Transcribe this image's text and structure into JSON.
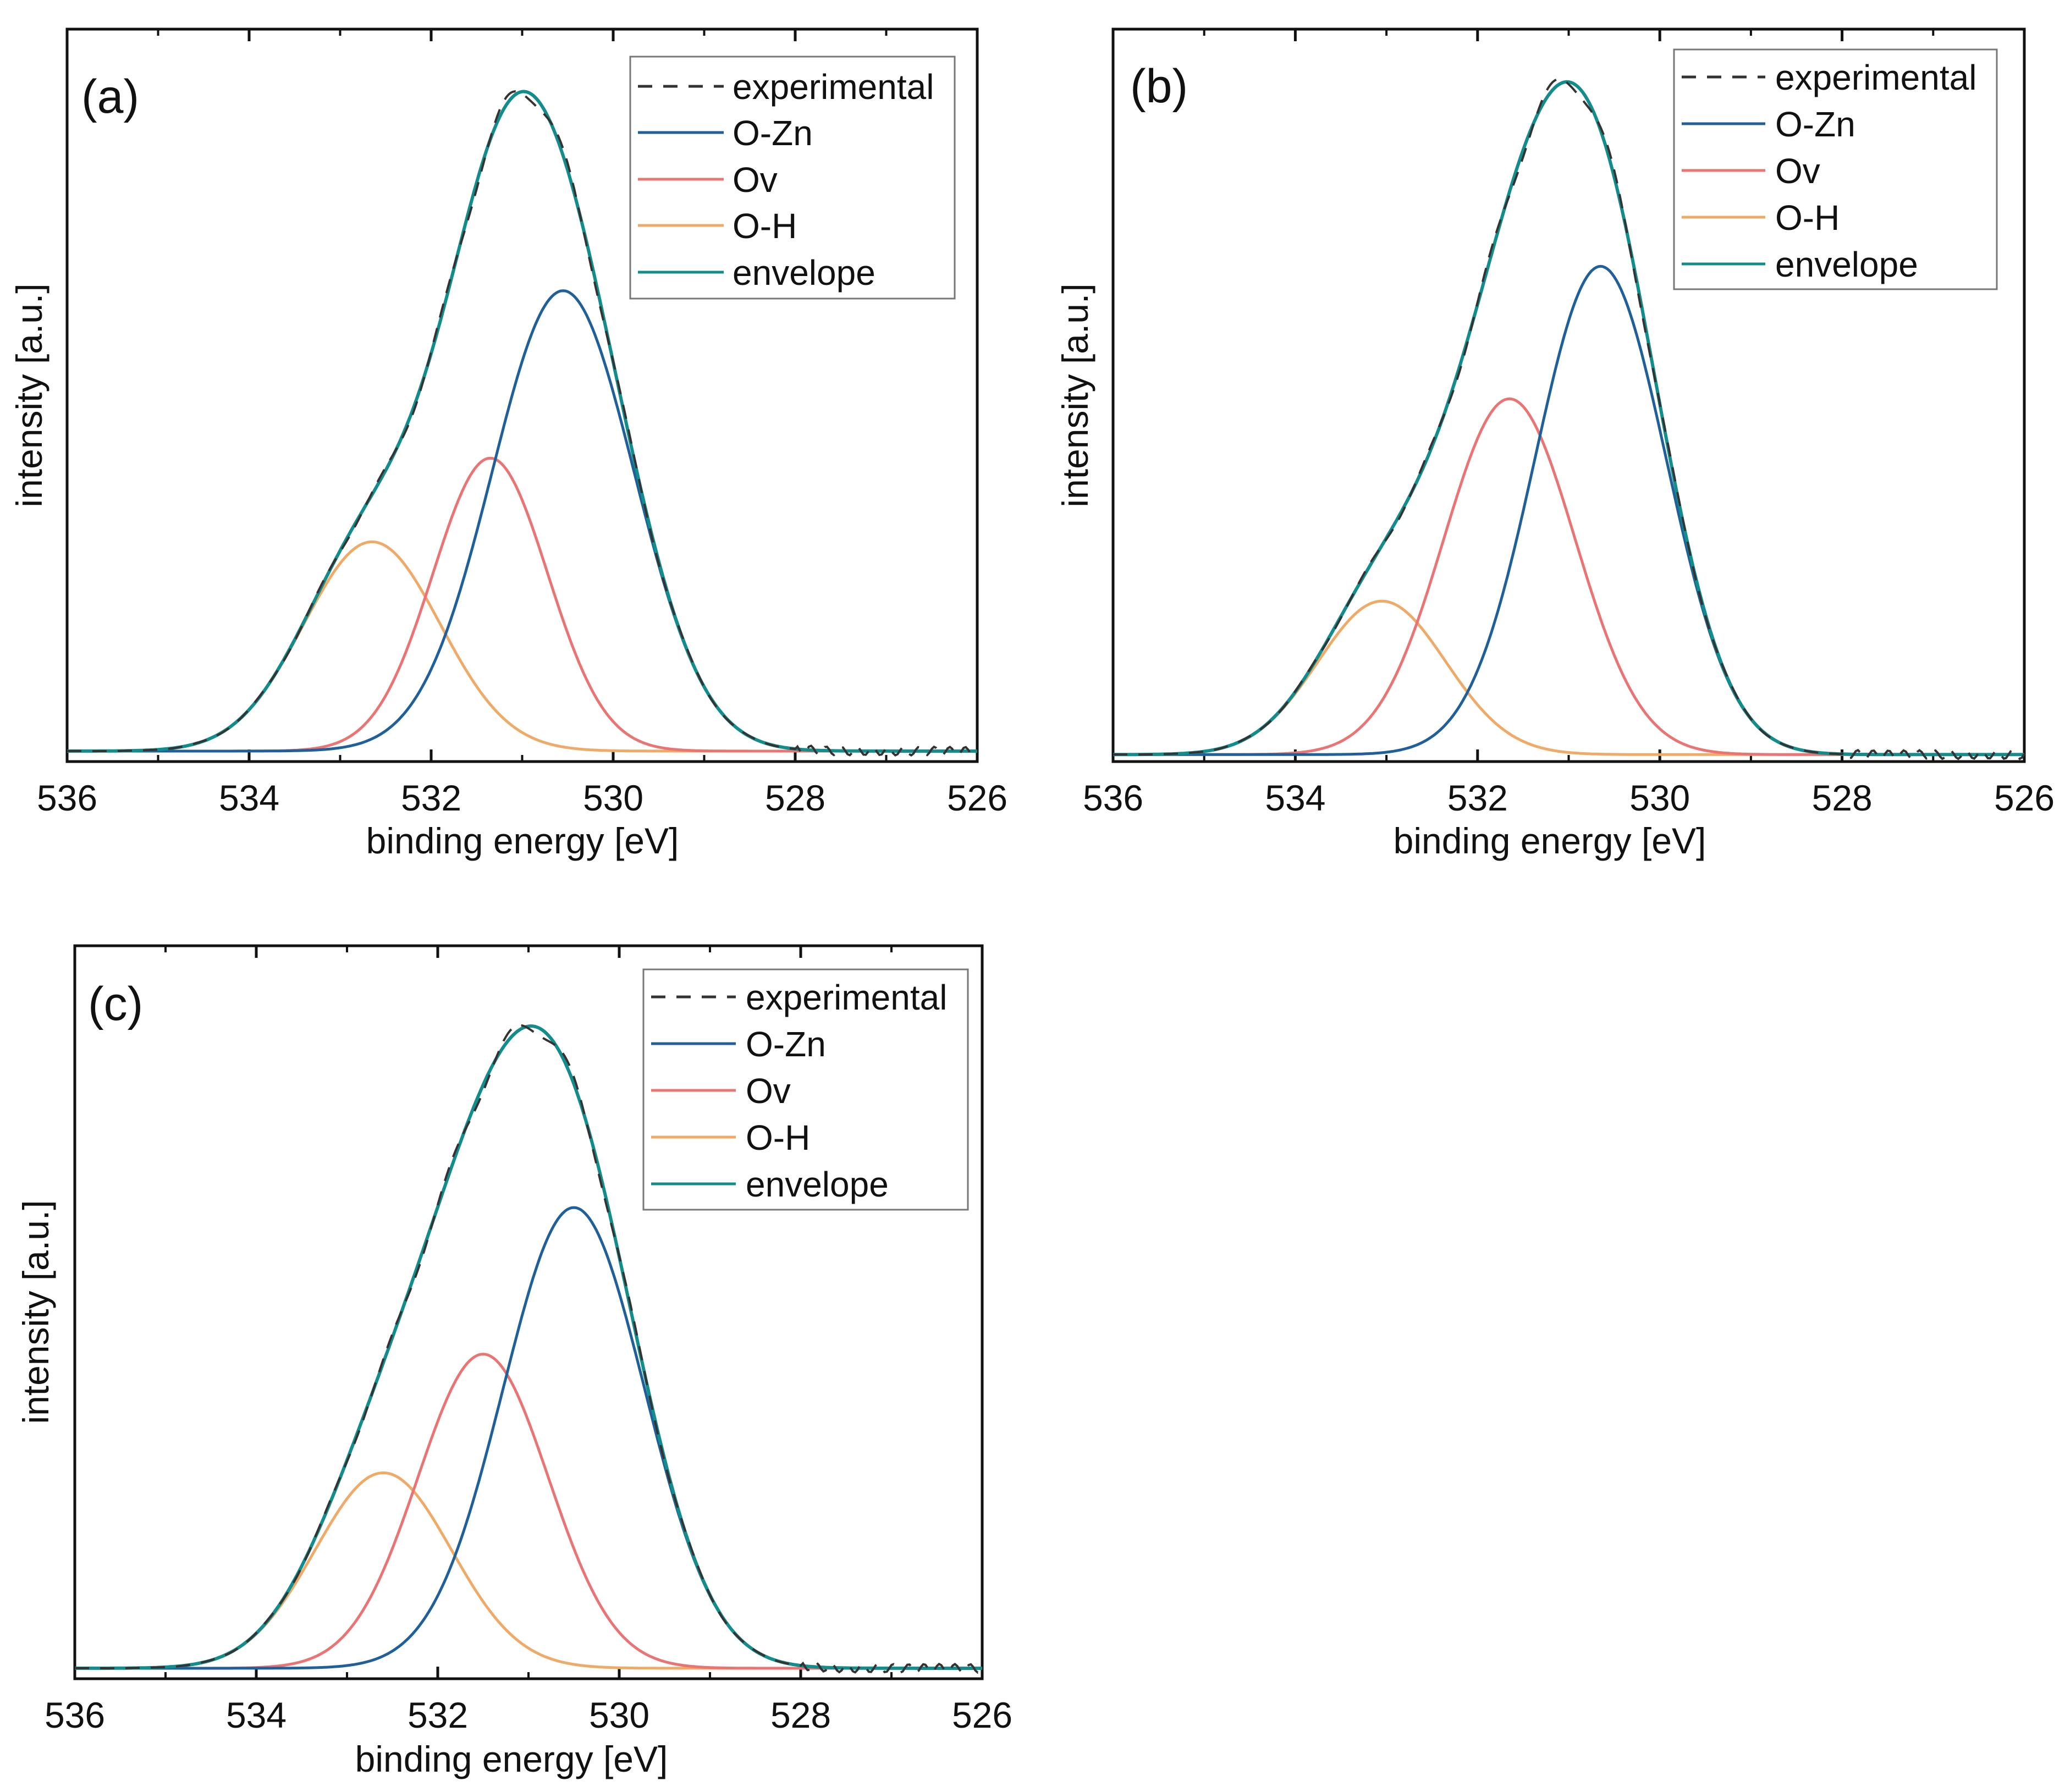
{
  "chart_data": [
    {
      "type": "line",
      "panel_label": "(a)",
      "xlabel": "binding energy [eV]",
      "ylabel": "intensity [a.u.]",
      "xlim": [
        536,
        526
      ],
      "x_reversed": true,
      "x_ticks": [
        "536",
        "534",
        "532",
        "530",
        "528",
        "526"
      ],
      "y_ticks": [],
      "ylim": [
        0,
        1.05
      ],
      "grid": false,
      "legend_position": "top-right",
      "legend": [
        "experimental",
        "O-Zn",
        "Ov",
        "O-H",
        "envelope"
      ],
      "baseline": 0.015,
      "components": [
        {
          "name": "O-Zn",
          "center": 530.55,
          "height": 0.66,
          "sigma": 0.78
        },
        {
          "name": "Ov",
          "center": 531.35,
          "height": 0.42,
          "sigma": 0.63
        },
        {
          "name": "O-H",
          "center": 532.65,
          "height": 0.3,
          "sigma": 0.75
        }
      ],
      "series": [
        {
          "name": "experimental",
          "style": "dashed",
          "color": "#333333"
        },
        {
          "name": "O-Zn",
          "style": "solid",
          "color": "#1f5f9a"
        },
        {
          "name": "Ov",
          "style": "solid",
          "color": "#ea7474"
        },
        {
          "name": "O-H",
          "style": "solid",
          "color": "#eeaa66"
        },
        {
          "name": "envelope",
          "style": "solid",
          "color": "#138c8c"
        }
      ]
    },
    {
      "type": "line",
      "panel_label": "(b)",
      "xlabel": "binding energy [eV]",
      "ylabel": "intensity [a.u.]",
      "xlim": [
        536,
        526
      ],
      "x_reversed": true,
      "x_ticks": [
        "536",
        "534",
        "532",
        "530",
        "528",
        "526"
      ],
      "y_ticks": [],
      "ylim": [
        0,
        1.05
      ],
      "grid": false,
      "legend_position": "top-right",
      "legend": [
        "experimental",
        "O-Zn",
        "Ov",
        "O-H",
        "envelope"
      ],
      "baseline": 0.01,
      "components": [
        {
          "name": "O-Zn",
          "center": 530.65,
          "height": 0.7,
          "sigma": 0.72
        },
        {
          "name": "Ov",
          "center": 531.65,
          "height": 0.51,
          "sigma": 0.72
        },
        {
          "name": "O-H",
          "center": 533.05,
          "height": 0.22,
          "sigma": 0.7
        }
      ],
      "series": [
        {
          "name": "experimental",
          "style": "dashed",
          "color": "#333333"
        },
        {
          "name": "O-Zn",
          "style": "solid",
          "color": "#1f5f9a"
        },
        {
          "name": "Ov",
          "style": "solid",
          "color": "#ea7474"
        },
        {
          "name": "O-H",
          "style": "solid",
          "color": "#eeaa66"
        },
        {
          "name": "envelope",
          "style": "solid",
          "color": "#138c8c"
        }
      ]
    },
    {
      "type": "line",
      "panel_label": "(c)",
      "xlabel": "binding energy [eV]",
      "ylabel": "intensity [a.u.]",
      "xlim": [
        536,
        526
      ],
      "x_reversed": true,
      "x_ticks": [
        "536",
        "534",
        "532",
        "530",
        "528",
        "526"
      ],
      "y_ticks": [],
      "ylim": [
        0,
        1.05
      ],
      "grid": false,
      "legend_position": "top-right",
      "legend": [
        "experimental",
        "O-Zn",
        "Ov",
        "O-H",
        "envelope"
      ],
      "baseline": 0.015,
      "components": [
        {
          "name": "O-Zn",
          "center": 530.5,
          "height": 0.66,
          "sigma": 0.78
        },
        {
          "name": "Ov",
          "center": 531.5,
          "height": 0.45,
          "sigma": 0.72
        },
        {
          "name": "O-H",
          "center": 532.6,
          "height": 0.28,
          "sigma": 0.75
        }
      ],
      "series": [
        {
          "name": "experimental",
          "style": "dashed",
          "color": "#333333"
        },
        {
          "name": "O-Zn",
          "style": "solid",
          "color": "#1f5f9a"
        },
        {
          "name": "Ov",
          "style": "solid",
          "color": "#ea7474"
        },
        {
          "name": "O-H",
          "style": "solid",
          "color": "#eeaa66"
        },
        {
          "name": "envelope",
          "style": "solid",
          "color": "#138c8c"
        }
      ]
    }
  ]
}
